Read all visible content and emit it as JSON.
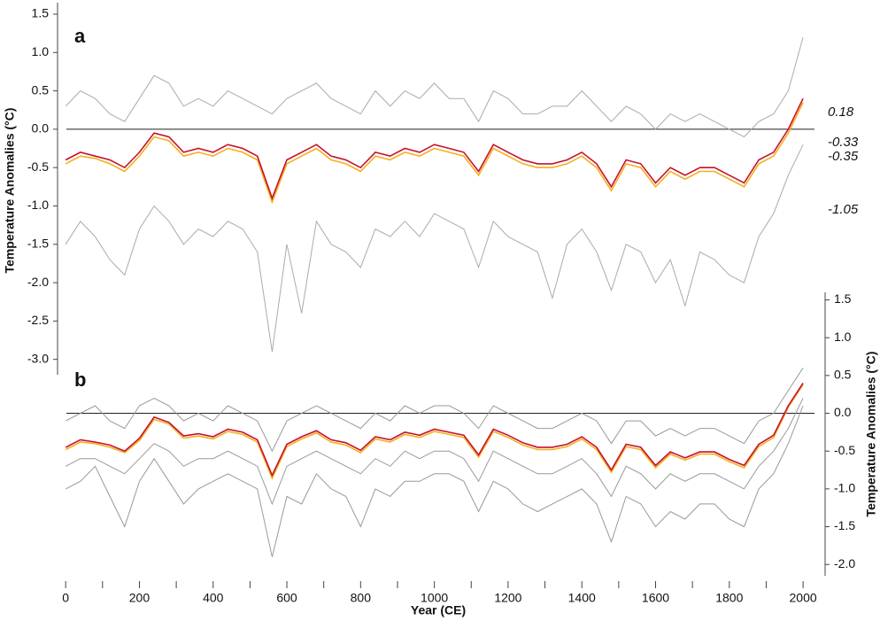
{
  "chart_data": [
    {
      "type": "line",
      "panel": "a",
      "ylabel": "Temperature Anomalies (°C)",
      "xlim": [
        -22,
        2043
      ],
      "ylim": [
        -3.2,
        1.65
      ],
      "hline": 0,
      "yticks": [
        1.5,
        {
          "value": 1,
          "label": "1.0"
        },
        0.5,
        {
          "value": 0,
          "label": "0.0"
        },
        -0.5,
        {
          "value": -1,
          "label": "-1.0"
        },
        -1.5,
        {
          "value": -2,
          "label": "-2.0"
        },
        -2.5,
        {
          "value": -3,
          "label": "-3.0"
        }
      ],
      "x": [
        0,
        40,
        80,
        120,
        160,
        200,
        240,
        280,
        320,
        360,
        400,
        440,
        480,
        520,
        560,
        600,
        640,
        680,
        720,
        760,
        800,
        840,
        880,
        920,
        960,
        1000,
        1040,
        1080,
        1120,
        1160,
        1200,
        1240,
        1280,
        1320,
        1360,
        1400,
        1440,
        1480,
        1520,
        1560,
        1600,
        1640,
        1680,
        1720,
        1760,
        1800,
        1840,
        1880,
        1920,
        1960,
        2000
      ],
      "series": [
        {
          "color": "#aaaaaa",
          "values": [
            0.3,
            0.5,
            0.4,
            0.2,
            0.1,
            0.4,
            0.7,
            0.6,
            0.3,
            0.4,
            0.3,
            0.5,
            0.4,
            0.3,
            0.2,
            0.4,
            0.5,
            0.6,
            0.4,
            0.3,
            0.2,
            0.5,
            0.3,
            0.5,
            0.4,
            0.6,
            0.4,
            0.4,
            0.1,
            0.5,
            0.4,
            0.2,
            0.2,
            0.3,
            0.3,
            0.5,
            0.3,
            0.1,
            0.3,
            0.2,
            0.0,
            0.2,
            0.1,
            0.2,
            0.1,
            0.0,
            -0.1,
            0.1,
            0.2,
            0.5,
            1.2
          ]
        },
        {
          "color": "#aaaaaa",
          "values": [
            -1.5,
            -1.2,
            -1.4,
            -1.7,
            -1.9,
            -1.3,
            -1.0,
            -1.2,
            -1.5,
            -1.3,
            -1.4,
            -1.2,
            -1.3,
            -1.6,
            -2.9,
            -1.5,
            -2.4,
            -1.2,
            -1.5,
            -1.6,
            -1.8,
            -1.3,
            -1.4,
            -1.2,
            -1.4,
            -1.1,
            -1.2,
            -1.3,
            -1.8,
            -1.2,
            -1.4,
            -1.5,
            -1.6,
            -2.2,
            -1.5,
            -1.3,
            -1.6,
            -2.1,
            -1.5,
            -1.6,
            -2.0,
            -1.7,
            -2.3,
            -1.6,
            -1.7,
            -1.9,
            -2.0,
            -1.4,
            -1.1,
            -0.6,
            -0.2
          ]
        },
        {
          "color": "#f2b01e",
          "values": [
            -0.45,
            -0.35,
            -0.38,
            -0.45,
            -0.55,
            -0.35,
            -0.1,
            -0.15,
            -0.35,
            -0.3,
            -0.35,
            -0.25,
            -0.3,
            -0.4,
            -0.95,
            -0.45,
            -0.35,
            -0.25,
            -0.4,
            -0.45,
            -0.55,
            -0.35,
            -0.4,
            -0.3,
            -0.35,
            -0.25,
            -0.3,
            -0.35,
            -0.6,
            -0.25,
            -0.35,
            -0.45,
            -0.5,
            -0.5,
            -0.45,
            -0.35,
            -0.5,
            -0.8,
            -0.45,
            -0.5,
            -0.75,
            -0.55,
            -0.65,
            -0.55,
            -0.55,
            -0.65,
            -0.75,
            -0.45,
            -0.35,
            -0.05,
            0.35
          ]
        },
        {
          "color": "#c8102e",
          "values": [
            -0.4,
            -0.3,
            -0.35,
            -0.4,
            -0.5,
            -0.3,
            -0.05,
            -0.1,
            -0.3,
            -0.25,
            -0.3,
            -0.2,
            -0.25,
            -0.35,
            -0.9,
            -0.4,
            -0.3,
            -0.2,
            -0.35,
            -0.4,
            -0.5,
            -0.3,
            -0.35,
            -0.25,
            -0.3,
            -0.2,
            -0.25,
            -0.3,
            -0.55,
            -0.2,
            -0.3,
            -0.4,
            -0.45,
            -0.45,
            -0.4,
            -0.3,
            -0.45,
            -0.75,
            -0.4,
            -0.45,
            -0.7,
            -0.5,
            -0.6,
            -0.5,
            -0.5,
            -0.6,
            -0.7,
            -0.4,
            -0.3,
            0.0,
            0.4
          ]
        }
      ],
      "annotations": [
        {
          "text": "0.18",
          "color": "#999999"
        },
        {
          "text": "-0.33",
          "color": "#c8102e"
        },
        {
          "text": "-0.35",
          "color": "#e8a800"
        },
        {
          "text": "-1.05",
          "color": "#999999"
        }
      ]
    },
    {
      "type": "line",
      "panel": "b",
      "ylabel": "Temperature Anomalies (°C)",
      "xlabel": "Year (CE)",
      "xlim": [
        -22,
        2043
      ],
      "ylim": [
        -2.15,
        1.6
      ],
      "hline": 0,
      "xticks": [
        0,
        200,
        400,
        600,
        800,
        1000,
        1200,
        1400,
        1600,
        1800,
        2000
      ],
      "xminorticks": [
        100,
        300,
        500,
        700,
        900,
        1100,
        1300,
        1500,
        1700,
        1900
      ],
      "yticks": [
        1.5,
        {
          "value": 1,
          "label": "1.0"
        },
        0.5,
        {
          "value": 0,
          "label": "0.0"
        },
        -0.5,
        {
          "value": -1,
          "label": "-1.0"
        },
        -1.5,
        {
          "value": -2,
          "label": "-2.0"
        }
      ],
      "x": [
        0,
        40,
        80,
        120,
        160,
        200,
        240,
        280,
        320,
        360,
        400,
        440,
        480,
        520,
        560,
        600,
        640,
        680,
        720,
        760,
        800,
        840,
        880,
        920,
        960,
        1000,
        1040,
        1080,
        1120,
        1160,
        1200,
        1240,
        1280,
        1320,
        1360,
        1400,
        1440,
        1480,
        1520,
        1560,
        1600,
        1640,
        1680,
        1720,
        1760,
        1800,
        1840,
        1880,
        1920,
        1960,
        2000
      ],
      "series": [
        {
          "color": "#999999",
          "values": [
            -0.1,
            0.0,
            0.1,
            -0.1,
            -0.2,
            0.1,
            0.2,
            0.1,
            -0.1,
            0.0,
            -0.1,
            0.1,
            0.0,
            -0.1,
            -0.5,
            -0.1,
            0.0,
            0.1,
            0.0,
            -0.1,
            -0.2,
            0.0,
            -0.1,
            0.1,
            0.0,
            0.1,
            0.1,
            0.0,
            -0.2,
            0.1,
            0.0,
            -0.1,
            -0.2,
            -0.2,
            -0.1,
            0.0,
            -0.1,
            -0.4,
            -0.1,
            -0.1,
            -0.3,
            -0.2,
            -0.3,
            -0.2,
            -0.2,
            -0.3,
            -0.4,
            -0.1,
            0.0,
            0.3,
            0.6
          ]
        },
        {
          "color": "#999999",
          "values": [
            -1.0,
            -0.9,
            -0.7,
            -1.1,
            -1.5,
            -0.9,
            -0.6,
            -0.9,
            -1.2,
            -1.0,
            -0.9,
            -0.8,
            -0.9,
            -1.0,
            -1.9,
            -1.1,
            -1.2,
            -0.8,
            -1.0,
            -1.1,
            -1.5,
            -1.0,
            -1.1,
            -0.9,
            -0.9,
            -0.8,
            -0.8,
            -0.9,
            -1.3,
            -0.9,
            -1.0,
            -1.2,
            -1.3,
            -1.2,
            -1.1,
            -1.0,
            -1.2,
            -1.7,
            -1.1,
            -1.2,
            -1.5,
            -1.3,
            -1.4,
            -1.2,
            -1.2,
            -1.4,
            -1.5,
            -1.0,
            -0.8,
            -0.4,
            0.1
          ]
        },
        {
          "color": "#999999",
          "values": [
            -0.7,
            -0.6,
            -0.6,
            -0.7,
            -0.8,
            -0.6,
            -0.4,
            -0.5,
            -0.7,
            -0.6,
            -0.6,
            -0.5,
            -0.6,
            -0.7,
            -1.2,
            -0.7,
            -0.6,
            -0.5,
            -0.6,
            -0.7,
            -0.8,
            -0.6,
            -0.7,
            -0.5,
            -0.6,
            -0.5,
            -0.5,
            -0.6,
            -0.9,
            -0.5,
            -0.6,
            -0.7,
            -0.8,
            -0.8,
            -0.7,
            -0.6,
            -0.8,
            -1.1,
            -0.7,
            -0.8,
            -1.0,
            -0.8,
            -0.9,
            -0.8,
            -0.8,
            -0.9,
            -1.0,
            -0.7,
            -0.5,
            -0.2,
            0.2
          ]
        },
        {
          "color": "#f2b01e",
          "values": [
            -0.48,
            -0.38,
            -0.4,
            -0.45,
            -0.52,
            -0.36,
            -0.08,
            -0.14,
            -0.33,
            -0.3,
            -0.34,
            -0.24,
            -0.28,
            -0.38,
            -0.86,
            -0.44,
            -0.34,
            -0.26,
            -0.38,
            -0.42,
            -0.52,
            -0.34,
            -0.38,
            -0.28,
            -0.32,
            -0.24,
            -0.28,
            -0.32,
            -0.58,
            -0.24,
            -0.32,
            -0.42,
            -0.48,
            -0.48,
            -0.44,
            -0.34,
            -0.48,
            -0.78,
            -0.44,
            -0.48,
            -0.72,
            -0.54,
            -0.62,
            -0.54,
            -0.54,
            -0.64,
            -0.72,
            -0.44,
            -0.32,
            0.08,
            0.38
          ]
        },
        {
          "color": "#c8102e",
          "values": [
            -0.45,
            -0.35,
            -0.38,
            -0.42,
            -0.5,
            -0.33,
            -0.05,
            -0.12,
            -0.3,
            -0.27,
            -0.31,
            -0.21,
            -0.25,
            -0.35,
            -0.82,
            -0.41,
            -0.31,
            -0.23,
            -0.35,
            -0.39,
            -0.49,
            -0.31,
            -0.35,
            -0.25,
            -0.29,
            -0.21,
            -0.25,
            -0.29,
            -0.55,
            -0.21,
            -0.29,
            -0.39,
            -0.45,
            -0.45,
            -0.41,
            -0.31,
            -0.45,
            -0.75,
            -0.41,
            -0.45,
            -0.69,
            -0.51,
            -0.59,
            -0.51,
            -0.51,
            -0.61,
            -0.69,
            -0.41,
            -0.29,
            0.1,
            0.4
          ]
        }
      ]
    }
  ]
}
